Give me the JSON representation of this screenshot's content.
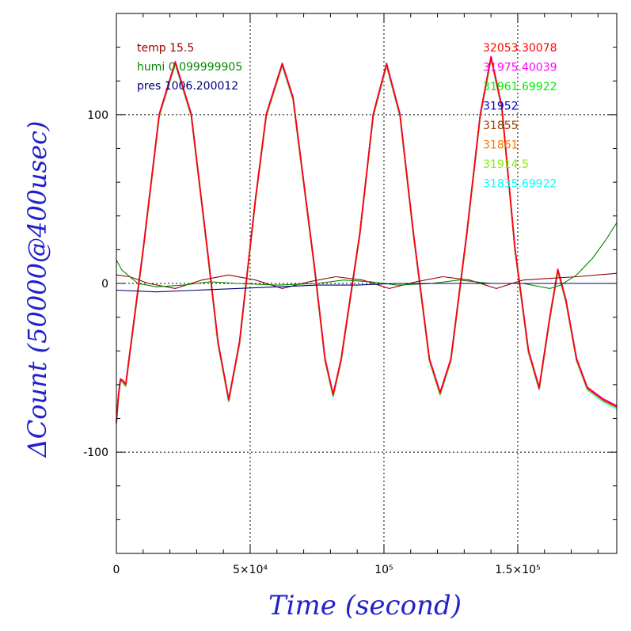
{
  "chart_data": {
    "type": "line",
    "xlabel": "Time (second)",
    "ylabel": "ΔCount (50000@400usec)",
    "xlim": [
      0,
      187000
    ],
    "ylim": [
      -160,
      160
    ],
    "grid": true,
    "x_ticks": [
      {
        "value": 0,
        "label": "0"
      },
      {
        "value": 50000,
        "label": "5×10⁴"
      },
      {
        "value": 100000,
        "label": "10⁵"
      },
      {
        "value": 150000,
        "label": "1.5×10⁵"
      }
    ],
    "y_ticks": [
      {
        "value": -100,
        "label": "-100"
      },
      {
        "value": 0,
        "label": "0"
      },
      {
        "value": 100,
        "label": "100"
      }
    ],
    "env_legend": [
      {
        "text": "temp 15.5",
        "color": "#990000"
      },
      {
        "text": "humi 0.099999905",
        "color": "#008800"
      },
      {
        "text": "pres 1006.200012",
        "color": "#000077"
      }
    ],
    "series_legend": [
      {
        "text": "32053.30078",
        "color": "#ff0000"
      },
      {
        "text": "31975.40039",
        "color": "#ff00ff"
      },
      {
        "text": "31961.69922",
        "color": "#00ee00"
      },
      {
        "text": "31952",
        "color": "#0000cc"
      },
      {
        "text": "31855",
        "color": "#994400"
      },
      {
        "text": "31861",
        "color": "#ff7700"
      },
      {
        "text": "31914.5",
        "color": "#88ee00"
      },
      {
        "text": "31835.69922",
        "color": "#00ffff"
      }
    ],
    "main_series_points": [
      [
        0,
        -82
      ],
      [
        800,
        -66
      ],
      [
        1500,
        -57
      ],
      [
        2500,
        -58
      ],
      [
        3500,
        -60
      ],
      [
        10000,
        20
      ],
      [
        16000,
        100
      ],
      [
        22000,
        131
      ],
      [
        28000,
        100
      ],
      [
        34000,
        20
      ],
      [
        38000,
        -35
      ],
      [
        42000,
        -69
      ],
      [
        46000,
        -35
      ],
      [
        52000,
        50
      ],
      [
        56000,
        100
      ],
      [
        62000,
        130
      ],
      [
        66000,
        110
      ],
      [
        74000,
        10
      ],
      [
        78000,
        -45
      ],
      [
        81000,
        -66
      ],
      [
        84000,
        -45
      ],
      [
        91000,
        30
      ],
      [
        96000,
        100
      ],
      [
        101000,
        130
      ],
      [
        106000,
        100
      ],
      [
        111000,
        30
      ],
      [
        117000,
        -45
      ],
      [
        121000,
        -65
      ],
      [
        125000,
        -45
      ],
      [
        131000,
        30
      ],
      [
        136000,
        100
      ],
      [
        140000,
        134
      ],
      [
        144000,
        105
      ],
      [
        149000,
        20
      ],
      [
        154000,
        -40
      ],
      [
        158000,
        -62
      ],
      [
        162000,
        -20
      ],
      [
        165000,
        8
      ],
      [
        168000,
        -10
      ],
      [
        172000,
        -45
      ],
      [
        176000,
        -62
      ],
      [
        182000,
        -69
      ],
      [
        187000,
        -73
      ]
    ],
    "env_series": [
      {
        "name": "temp",
        "color": "#990000",
        "points": [
          [
            0,
            5
          ],
          [
            5000,
            4
          ],
          [
            12000,
            0
          ],
          [
            22000,
            -3
          ],
          [
            32000,
            2
          ],
          [
            42000,
            5
          ],
          [
            52000,
            2
          ],
          [
            62000,
            -3
          ],
          [
            72000,
            1
          ],
          [
            82000,
            4
          ],
          [
            92000,
            2
          ],
          [
            102000,
            -3
          ],
          [
            112000,
            1
          ],
          [
            122000,
            4
          ],
          [
            132000,
            2
          ],
          [
            142000,
            -3
          ],
          [
            152000,
            2
          ],
          [
            162000,
            3
          ],
          [
            172000,
            4
          ],
          [
            187000,
            6
          ]
        ]
      },
      {
        "name": "humi",
        "color": "#008800",
        "points": [
          [
            0,
            14
          ],
          [
            2000,
            8
          ],
          [
            8000,
            0
          ],
          [
            15000,
            -2
          ],
          [
            25000,
            -1
          ],
          [
            35000,
            1
          ],
          [
            45000,
            0
          ],
          [
            60000,
            -1
          ],
          [
            75000,
            0
          ],
          [
            85000,
            2
          ],
          [
            95000,
            1
          ],
          [
            105000,
            -1
          ],
          [
            118000,
            0
          ],
          [
            128000,
            2
          ],
          [
            140000,
            0
          ],
          [
            152000,
            0
          ],
          [
            162000,
            -3
          ],
          [
            166000,
            -1
          ],
          [
            172000,
            5
          ],
          [
            178000,
            15
          ],
          [
            183000,
            26
          ],
          [
            187000,
            36
          ]
        ]
      },
      {
        "name": "pres",
        "color": "#000077",
        "points": [
          [
            0,
            -4
          ],
          [
            15000,
            -5
          ],
          [
            30000,
            -4
          ],
          [
            45000,
            -3
          ],
          [
            60000,
            -2
          ],
          [
            75000,
            -1
          ],
          [
            90000,
            -1
          ],
          [
            105000,
            0
          ],
          [
            120000,
            0
          ],
          [
            135000,
            0
          ],
          [
            150000,
            0
          ],
          [
            165000,
            0
          ],
          [
            187000,
            0
          ]
        ]
      }
    ]
  }
}
